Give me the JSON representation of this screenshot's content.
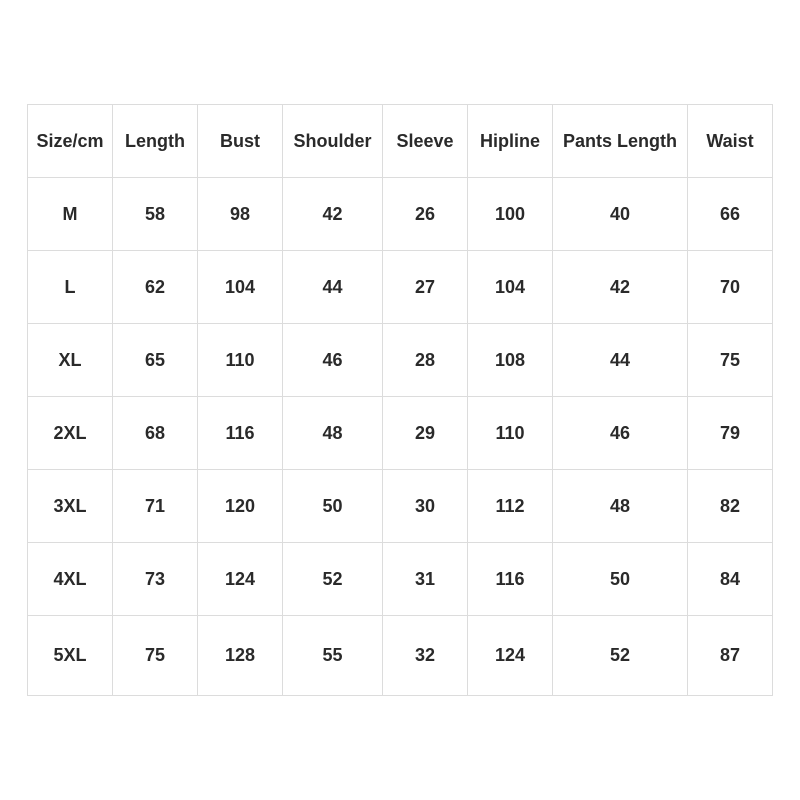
{
  "headers": [
    "Size/cm",
    "Length",
    "Bust",
    "Shoulder",
    "Sleeve",
    "Hipline",
    "Pants Length",
    "Waist"
  ],
  "rows": [
    [
      "M",
      "58",
      "98",
      "42",
      "26",
      "100",
      "40",
      "66"
    ],
    [
      "L",
      "62",
      "104",
      "44",
      "27",
      "104",
      "42",
      "70"
    ],
    [
      "XL",
      "65",
      "110",
      "46",
      "28",
      "108",
      "44",
      "75"
    ],
    [
      "2XL",
      "68",
      "116",
      "48",
      "29",
      "110",
      "46",
      "79"
    ],
    [
      "3XL",
      "71",
      "120",
      "50",
      "30",
      "112",
      "48",
      "82"
    ],
    [
      "4XL",
      "73",
      "124",
      "52",
      "31",
      "116",
      "50",
      "84"
    ],
    [
      "5XL",
      "75",
      "128",
      "55",
      "32",
      "124",
      "52",
      "87"
    ]
  ]
}
